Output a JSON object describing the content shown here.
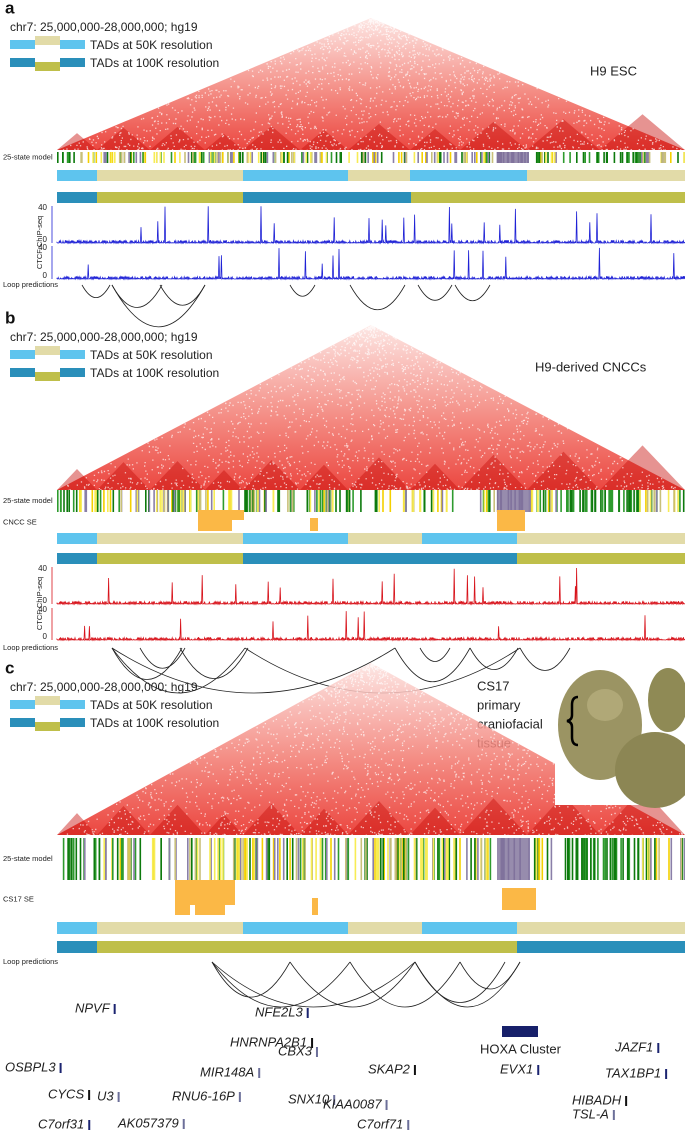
{
  "panels": [
    {
      "label": "a",
      "region": "chr7: 25,000,000-28,000,000; hg19",
      "legend_50k": "TADs at 50K resolution",
      "legend_100k": "TADs at 100K resolution",
      "sample": [
        "H9 ESC"
      ],
      "state_track": "25-state model",
      "chip_label": "CTCF ChIP-seq",
      "chip_ticks": [
        40,
        0,
        40,
        0
      ],
      "loop_track": "Loop predictions"
    },
    {
      "label": "b",
      "region": "chr7: 25,000,000-28,000,000; hg19",
      "legend_50k": "TADs at 50K resolution",
      "legend_100k": "TADs at 100K resolution",
      "sample": [
        "H9-derived CNCCs"
      ],
      "state_track": "25-state model",
      "se_track": "CNCC SE",
      "chip_label": "CTCF ChIP-seq",
      "chip_ticks": [
        40,
        0,
        40,
        0
      ],
      "loop_track": "Loop predictions"
    },
    {
      "label": "c",
      "region": "chr7: 25,000,000-28,000,000; hg19",
      "legend_50k": "TADs at 50K resolution",
      "legend_100k": "TADs at 100K resolution",
      "sample": [
        "CS17",
        "primary",
        "craniofacial",
        "tissue"
      ],
      "state_track": "25-state model",
      "se_track": "CS17 SE",
      "loop_track": "Loop predictions"
    }
  ],
  "genes": [
    "NPVF",
    "NFE2L3",
    "HOXA Cluster",
    "JAZF1",
    "OSBPL3",
    "HNRNPA2B1",
    "SKAP2",
    "EVX1",
    "CBX3",
    "MIR148A",
    "TAX1BP1",
    "CYCS",
    "SNX10",
    "HIBADH",
    "U3",
    "RNU6-16P",
    "KIAA0087",
    "TSL-A",
    "C7orf31",
    "AK057379",
    "C7orf71"
  ]
}
